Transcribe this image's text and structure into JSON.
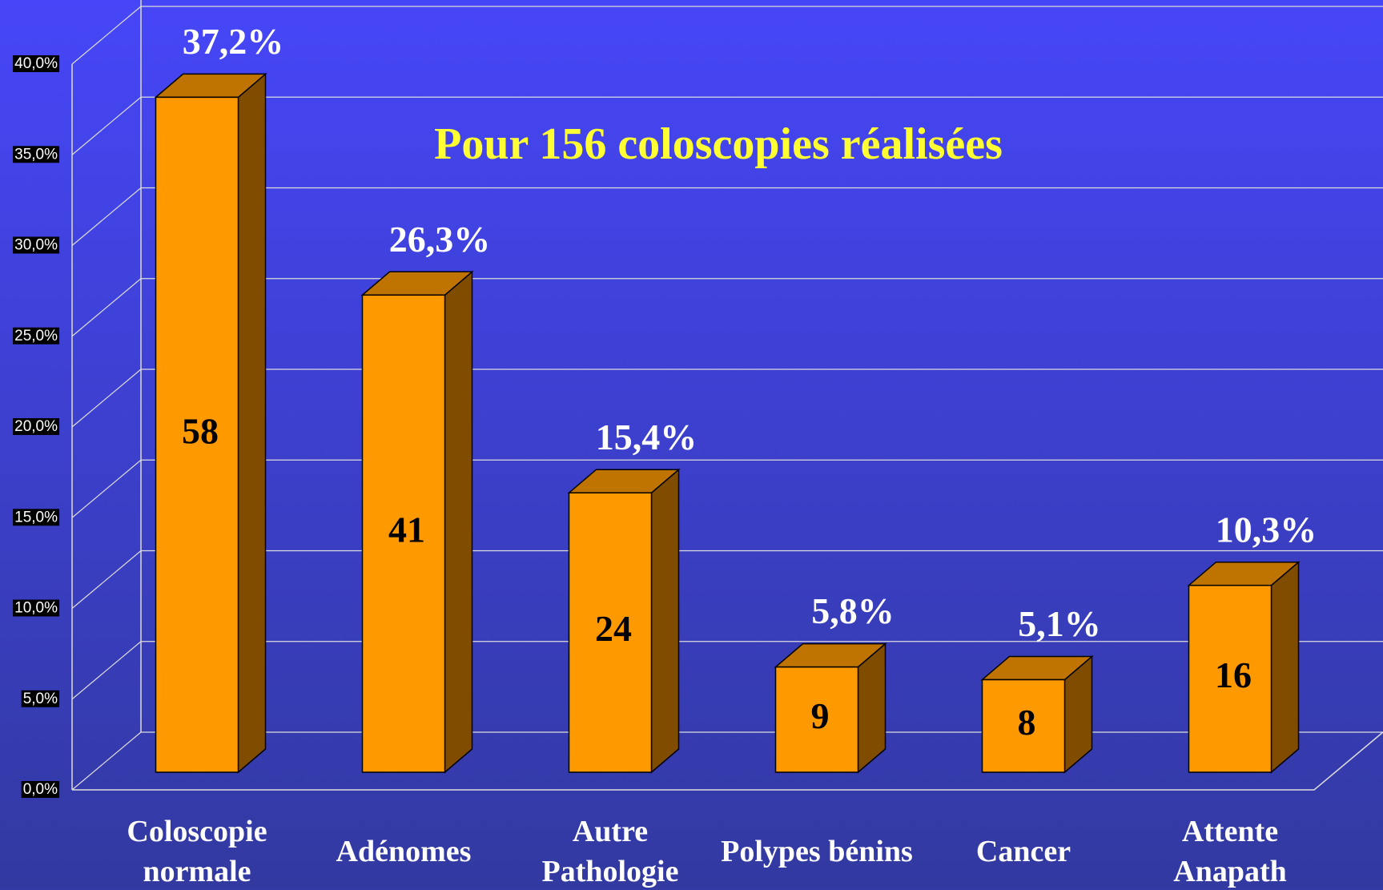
{
  "chart_data": {
    "type": "bar3d",
    "title": "Pour 156 coloscopies réalisées",
    "categories": [
      "Coloscopie normale",
      "Adénomes",
      "Autre Pathologie",
      "Polypes bénins",
      "Cancer",
      "Attente Anapath"
    ],
    "values": [
      37.2,
      26.3,
      15.4,
      5.8,
      5.1,
      10.3
    ],
    "value_labels": [
      "37,2%",
      "26,3%",
      "15,4%",
      "5,8%",
      "5,1%",
      "10,3%"
    ],
    "counts": [
      58,
      41,
      24,
      9,
      8,
      16
    ],
    "color": "#ff9900",
    "ylim": [
      0,
      40
    ],
    "yticks": [
      {
        "value": 0,
        "label": "0,0%"
      },
      {
        "value": 5,
        "label": "5,0%"
      },
      {
        "value": 10,
        "label": "10,0%"
      },
      {
        "value": 15,
        "label": "15,0%"
      },
      {
        "value": 20,
        "label": "20,0%"
      },
      {
        "value": 25,
        "label": "25,0%"
      },
      {
        "value": 30,
        "label": "30,0%"
      },
      {
        "value": 35,
        "label": "35,0%"
      },
      {
        "value": 40,
        "label": "40,0%"
      }
    ],
    "grid": true
  }
}
